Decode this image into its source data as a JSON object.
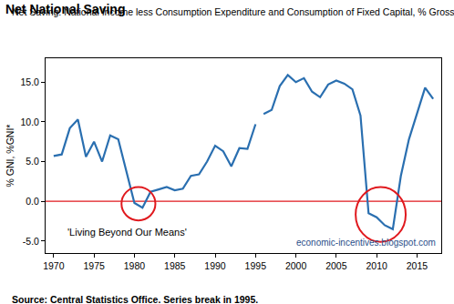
{
  "chart_data": {
    "type": "line",
    "title": "Net National Saving",
    "subtitle": "Net Saving: National Income less Consumption Expenditure and Consumption of Fixed Capital, % Gross National Income",
    "y_label": "% GNI, %GNI*",
    "annotations": [
      "'Living Beyond Our Means'",
      "economic-incentives.blogspot.com"
    ],
    "source": "Source: Central Statistics Office. Series break in 1995.",
    "series": [
      {
        "color": "#2a6fb0",
        "x": [
          1970,
          1971,
          1972,
          1973,
          1974,
          1975,
          1976,
          1977,
          1978,
          1979,
          1980,
          1981,
          1982,
          1983,
          1984,
          1985,
          1986,
          1987,
          1988,
          1989,
          1990,
          1991,
          1992,
          1993,
          1994,
          1995
        ],
        "values": [
          5.7,
          5.9,
          9.2,
          10.3,
          5.6,
          7.5,
          5.0,
          8.3,
          7.8,
          3.8,
          -0.2,
          -0.8,
          1.2,
          1.5,
          1.8,
          1.4,
          1.6,
          3.2,
          3.4,
          5.0,
          7.0,
          6.3,
          4.4,
          6.7,
          6.6,
          9.7
        ]
      },
      {
        "color": "#2a6fb0",
        "x": [
          1996,
          1997,
          1998,
          1999,
          2000,
          2001,
          2002,
          2003,
          2004,
          2005,
          2006,
          2007,
          2008,
          2009,
          2010,
          2011,
          2012,
          2013,
          2014,
          2015,
          2016,
          2017
        ],
        "values": [
          11.0,
          11.5,
          14.5,
          15.9,
          15.0,
          15.5,
          13.8,
          13.1,
          14.7,
          15.2,
          14.8,
          14.1,
          10.8,
          -1.5,
          -2.0,
          -3.0,
          -3.5,
          3.2,
          7.8,
          11.0,
          14.3,
          12.9
        ]
      }
    ],
    "xlim": [
      1969,
      2018
    ],
    "xticks": [
      1970,
      1975,
      1980,
      1985,
      1990,
      1995,
      2000,
      2005,
      2010,
      2015
    ],
    "ylim": [
      -6.5,
      18
    ],
    "yticks": [
      {
        "value": -5,
        "label": "-5.0"
      },
      {
        "value": 0,
        "label": "0.0"
      },
      {
        "value": 5,
        "label": "5.0"
      },
      {
        "value": 10,
        "label": "10.0"
      },
      {
        "value": 15,
        "label": "15.0"
      }
    ],
    "grid": false
  }
}
